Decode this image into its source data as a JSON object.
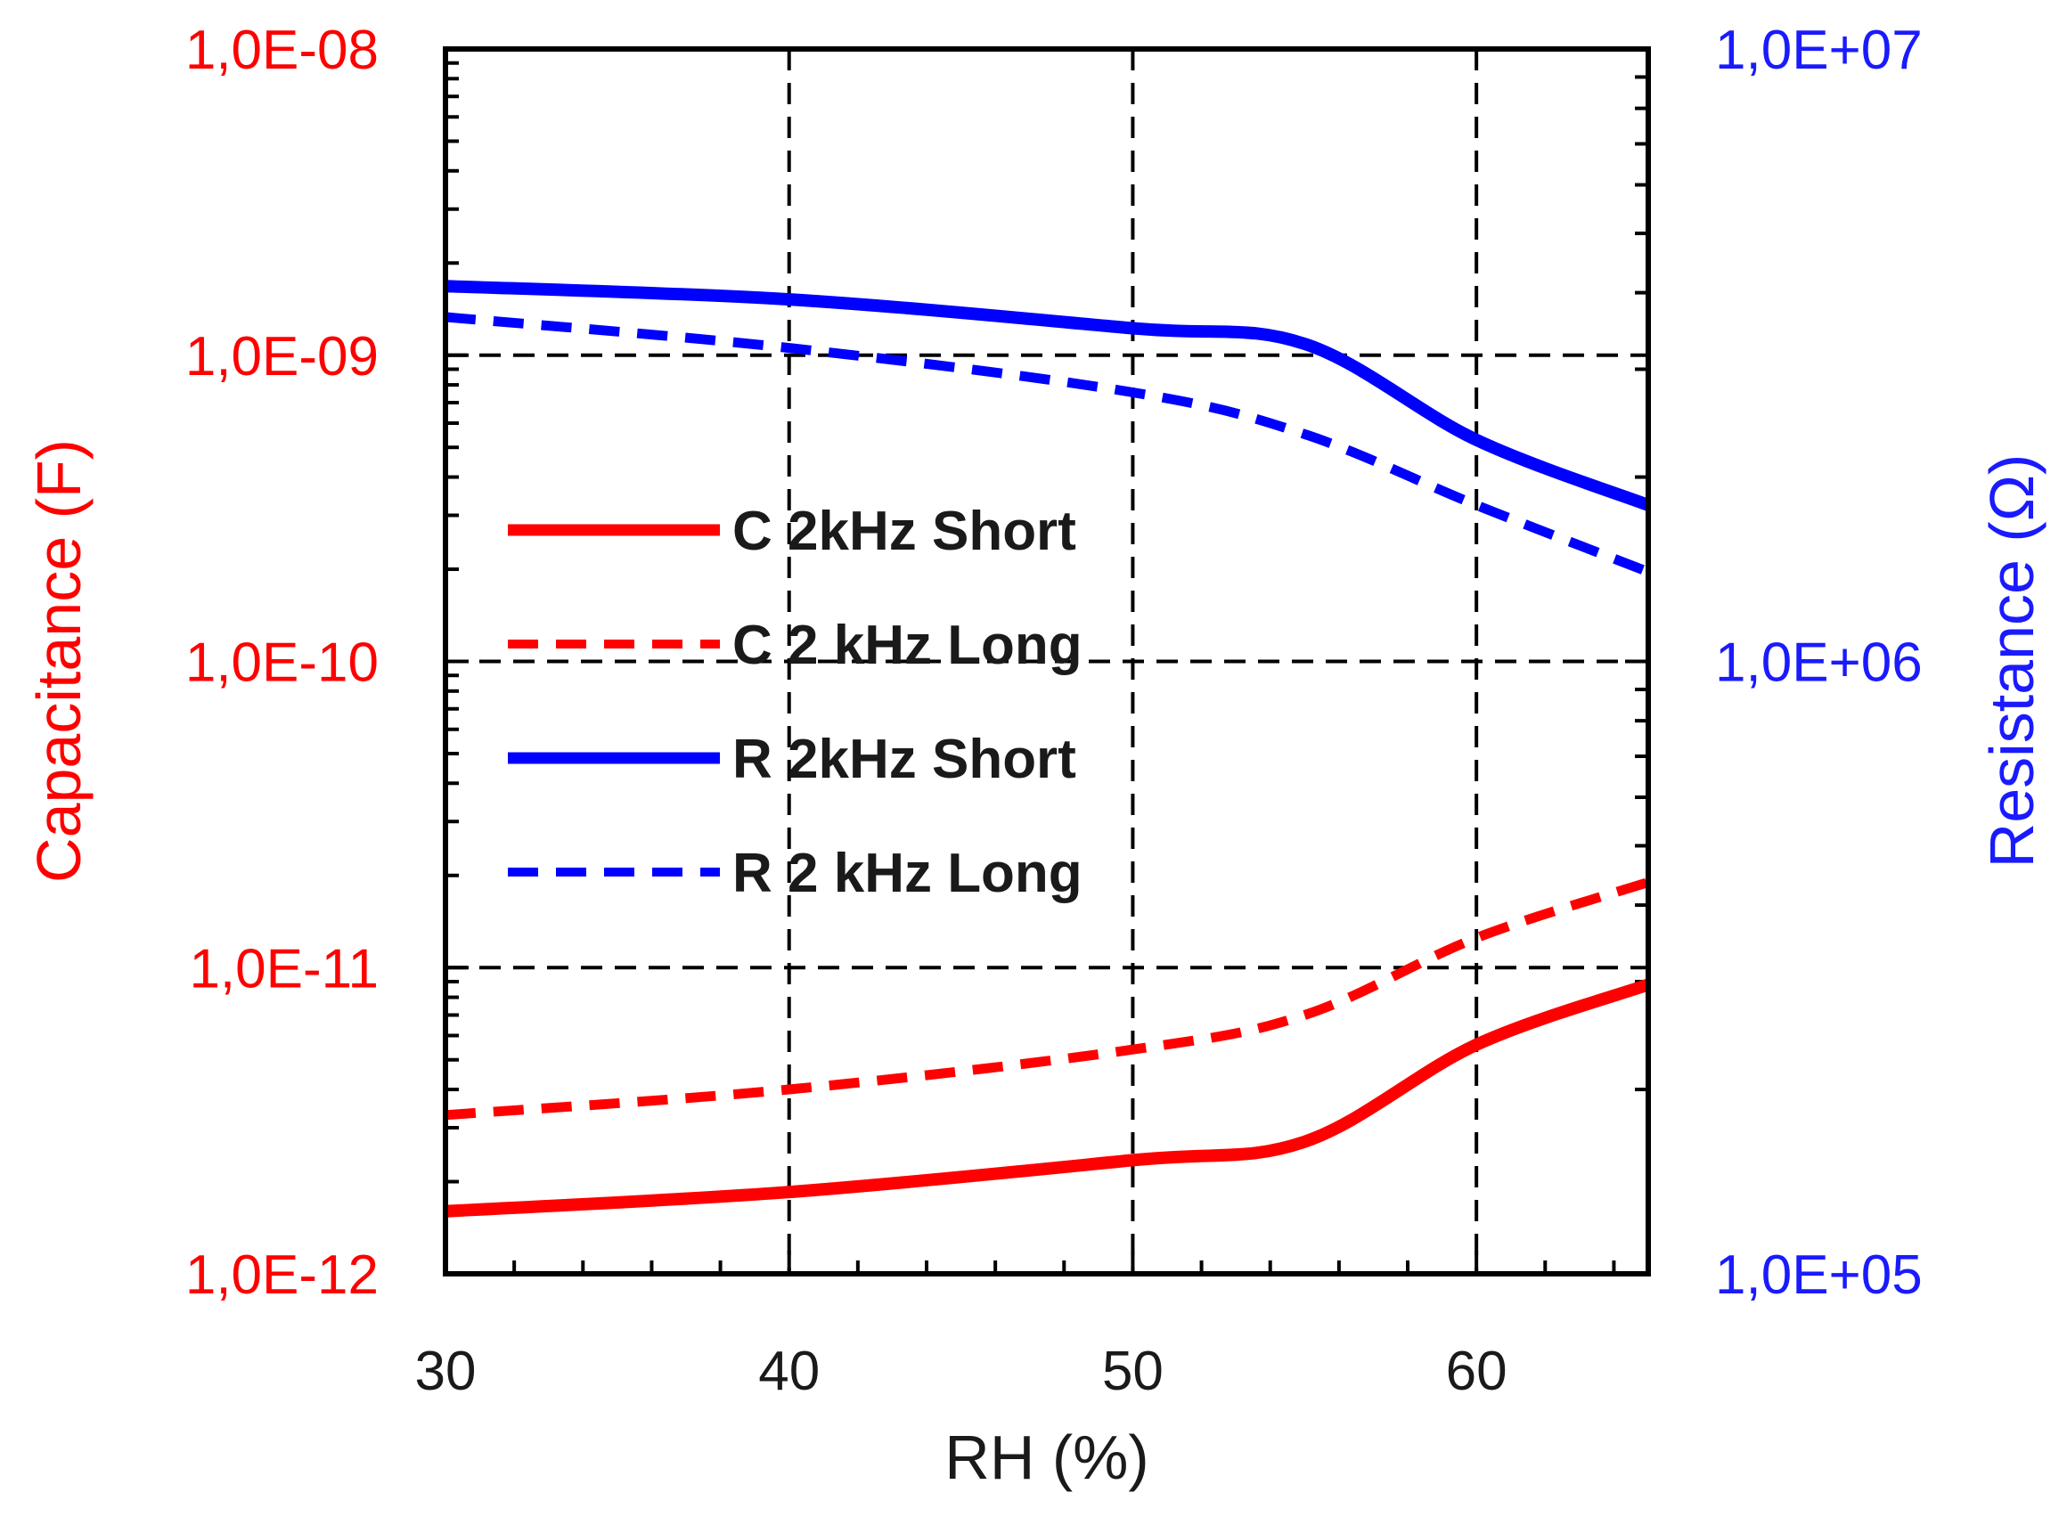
{
  "chart_data": {
    "type": "line",
    "title": "",
    "xlabel": "RH (%)",
    "ylabel_left": "Capacitance (F)",
    "ylabel_right": "Resistance (Ω)",
    "xlim": [
      30,
      65
    ],
    "x_ticks": [
      30,
      40,
      50,
      60
    ],
    "x_tick_labels": [
      "30",
      "40",
      "50",
      "60"
    ],
    "ylim_left": [
      1e-12,
      1e-08
    ],
    "ylim_right": [
      100000,
      10000000
    ],
    "y_scale": "log",
    "y_left_tick_labels": [
      "1,0E-12",
      "1,0E-11",
      "1,0E-10",
      "1,0E-09",
      "1,0E-08"
    ],
    "y_right_tick_labels": [
      "1,0E+05",
      "1,0E+06",
      "1,0E+07"
    ],
    "grid": true,
    "legend_position": "center-left",
    "x": [
      30,
      40,
      50,
      55,
      60,
      65
    ],
    "series": [
      {
        "name": "C 2kHz Short",
        "axis": "left",
        "color": "#ff0000",
        "dash": "solid",
        "values": [
          1.6e-12,
          1.85e-12,
          2.35e-12,
          2.7e-12,
          5.6e-12,
          8.8e-12
        ]
      },
      {
        "name": "C 2 kHz Long",
        "axis": "left",
        "color": "#ff0000",
        "dash": "dashed",
        "values": [
          3.3e-12,
          4e-12,
          5.4e-12,
          7e-12,
          1.25e-11,
          1.9e-11
        ]
      },
      {
        "name": "R 2kHz Short",
        "axis": "right",
        "color": "#0000ff",
        "dash": "solid",
        "values": [
          4100000,
          3900000,
          3500000,
          3300000,
          2300000,
          1800000
        ]
      },
      {
        "name": "R 2 kHz Long",
        "axis": "right",
        "color": "#0000ff",
        "dash": "dashed",
        "values": [
          3650000,
          3250000,
          2750000,
          2350000,
          1800000,
          1400000
        ]
      }
    ]
  }
}
